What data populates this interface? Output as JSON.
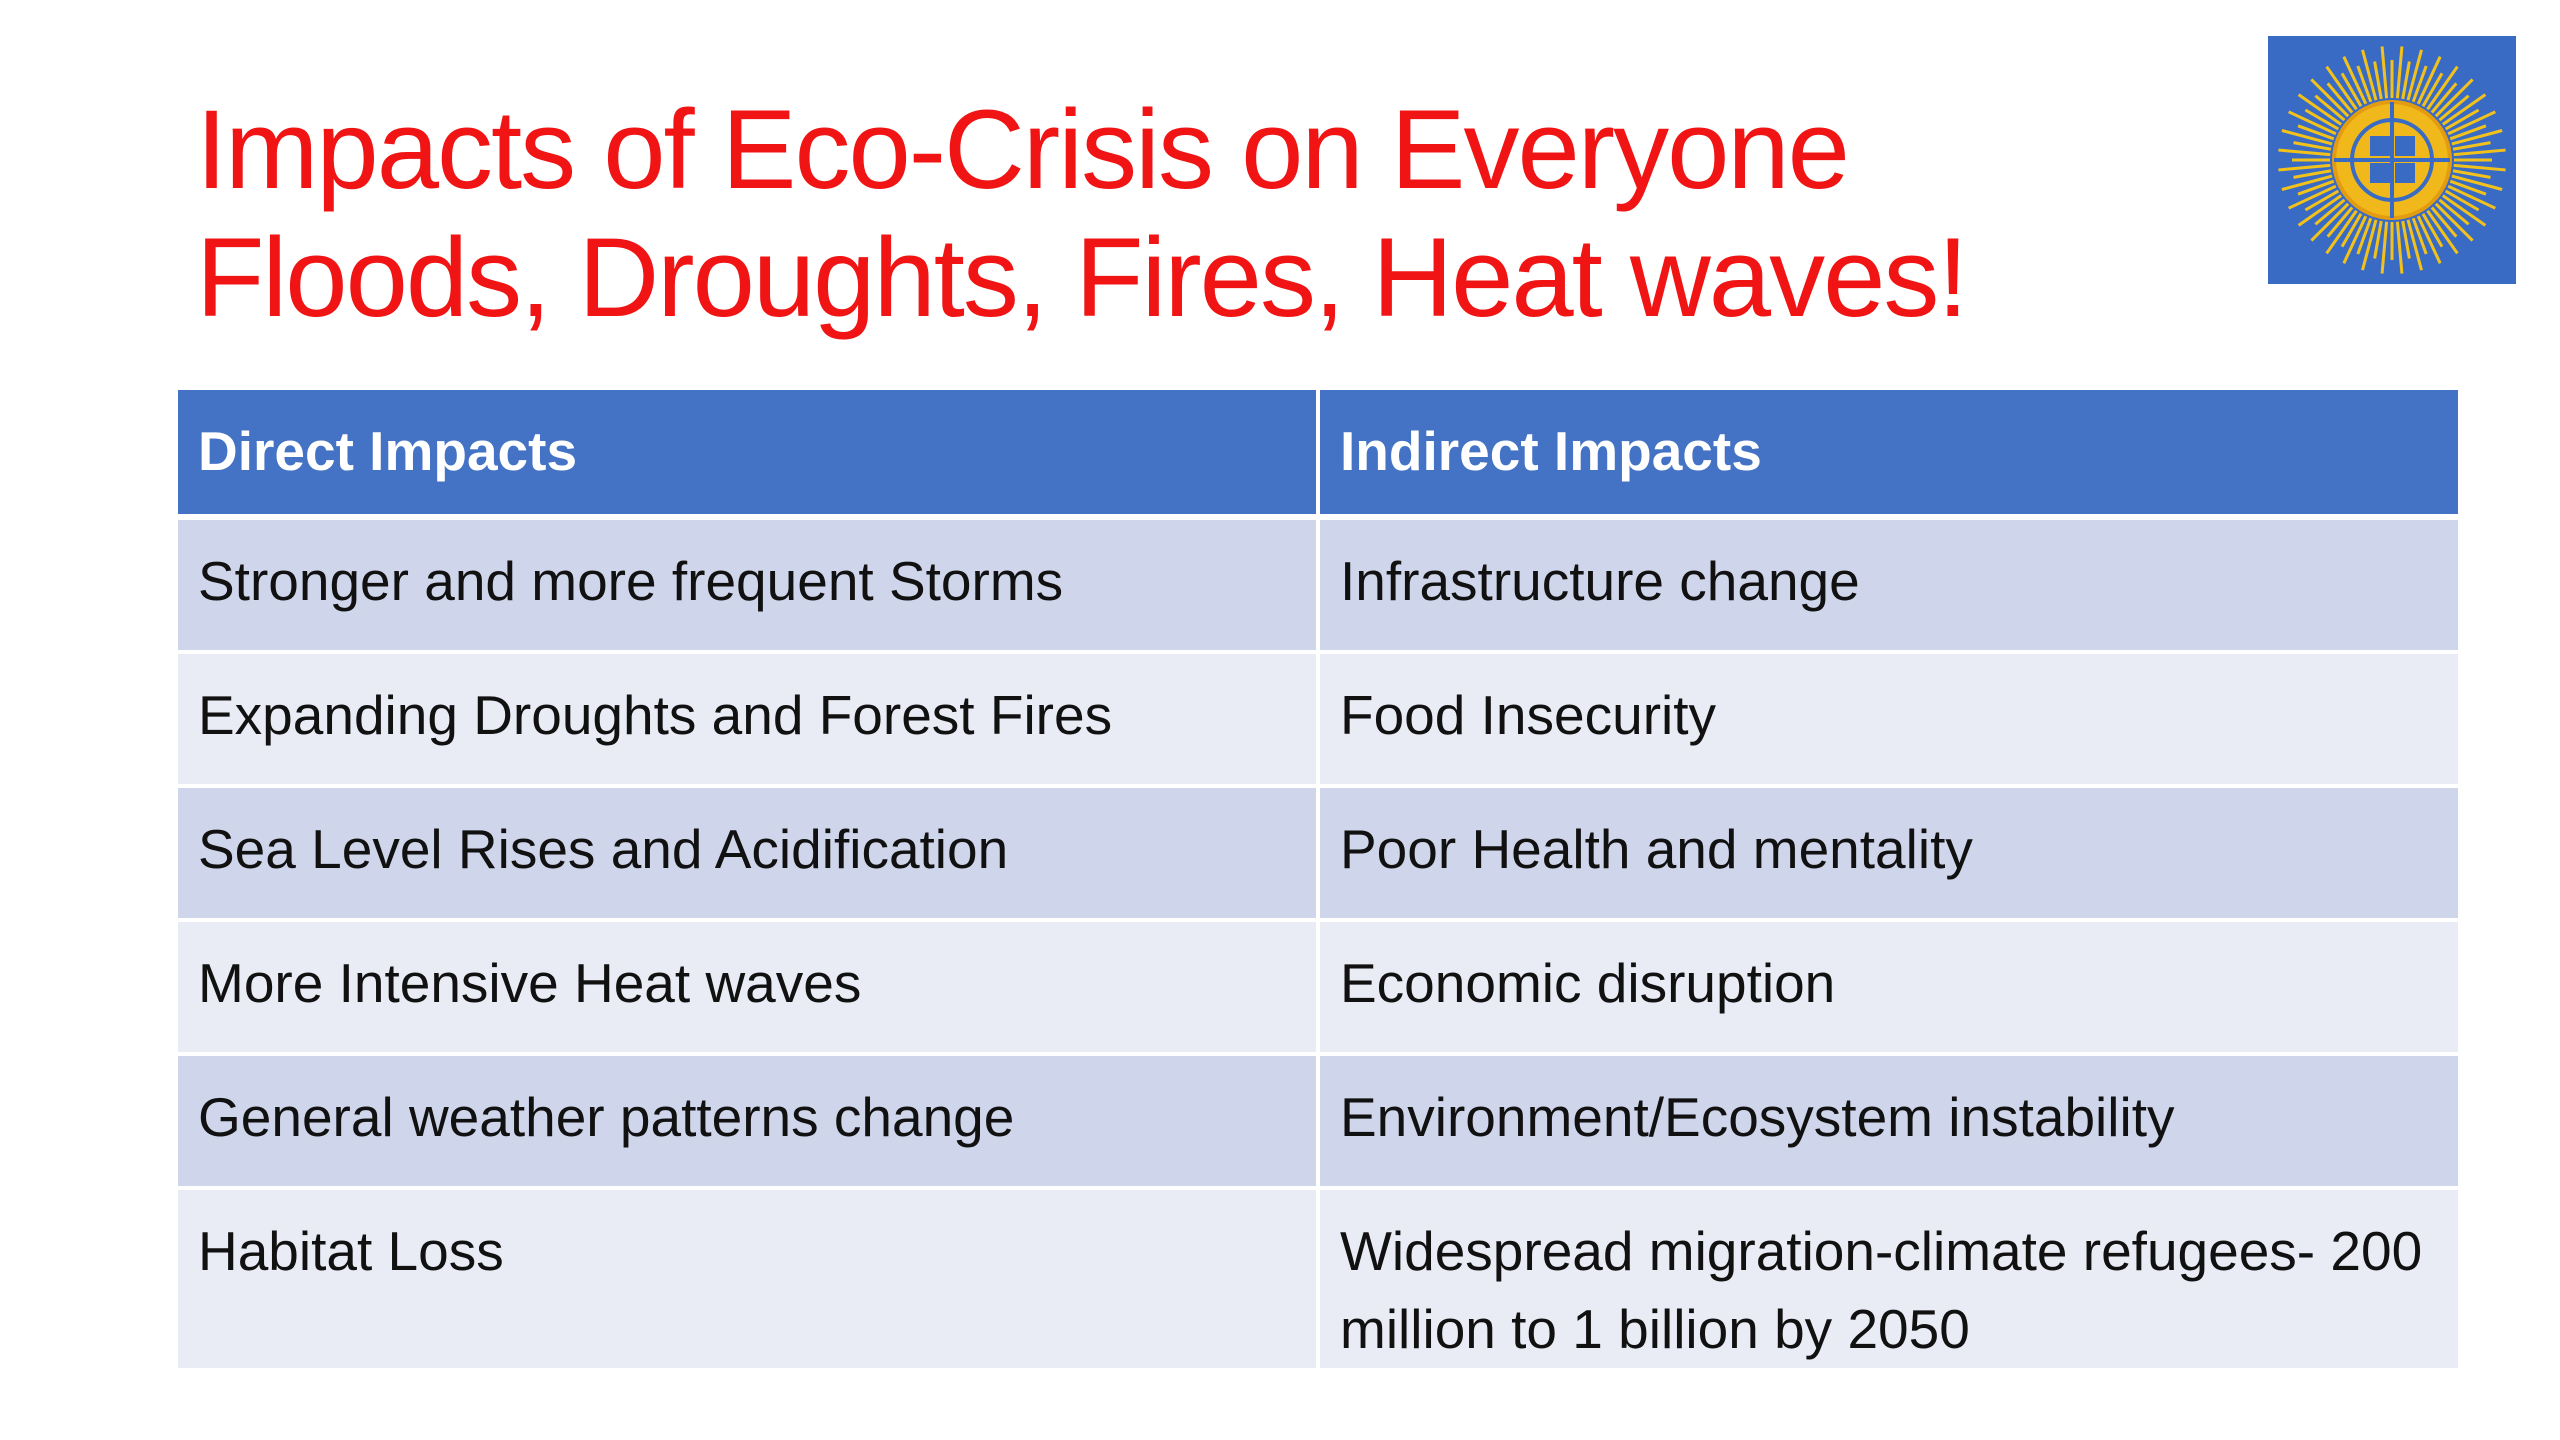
{
  "header": {
    "title": [
      "Impacts of Eco-Crisis on Everyone",
      "Floods, Droughts, Fires, Heat waves!"
    ]
  },
  "table": {
    "headers": [
      "Direct Impacts",
      "Indirect Impacts"
    ],
    "rows": [
      [
        "Stronger and more frequent Storms",
        "Infrastructure change"
      ],
      [
        "Expanding Droughts and Forest Fires",
        "Food Insecurity"
      ],
      [
        "Sea Level Rises and Acidification",
        "Poor Health and mentality"
      ],
      [
        "More Intensive Heat waves",
        "Economic disruption"
      ],
      [
        "General weather patterns change",
        "Environment/Ecosystem instability"
      ],
      [
        "Habitat Loss",
        "Widespread migration-climate refugees- 200 million to 1 billion by 2050"
      ]
    ]
  }
}
